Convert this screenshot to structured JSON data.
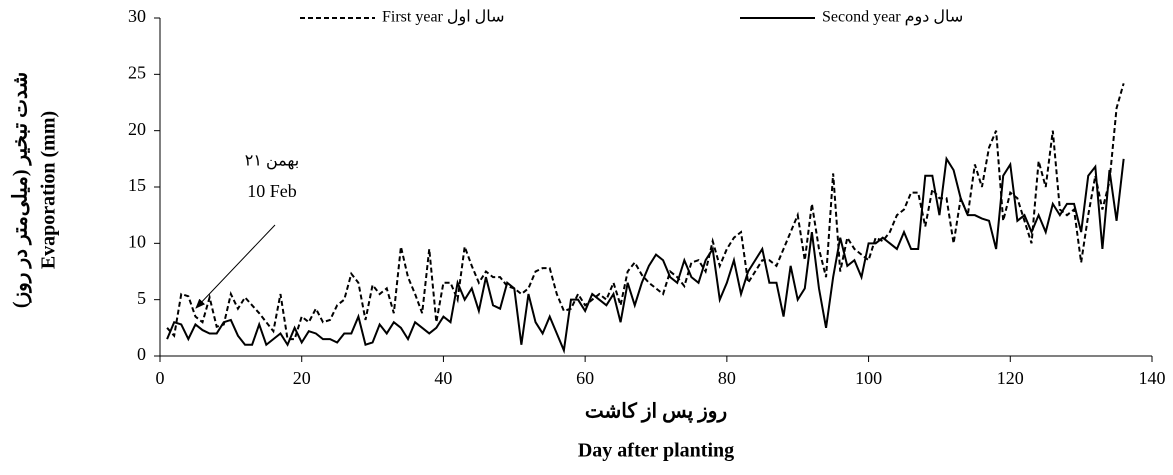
{
  "chart_data": {
    "type": "line",
    "y_label": [
      "شدت تبخیر (میلی‌متر در روز)",
      "Evaporation (mm)"
    ],
    "x_label": [
      "روز پس از کاشت",
      "Day after planting"
    ],
    "annotation": [
      "۲۱ بهمن",
      "10 Feb"
    ],
    "x": [
      1,
      2,
      3,
      4,
      5,
      6,
      7,
      8,
      9,
      10,
      11,
      12,
      13,
      14,
      15,
      16,
      17,
      18,
      19,
      20,
      21,
      22,
      23,
      24,
      25,
      26,
      27,
      28,
      29,
      30,
      31,
      32,
      33,
      34,
      35,
      36,
      37,
      38,
      39,
      40,
      41,
      42,
      43,
      44,
      45,
      46,
      47,
      48,
      49,
      50,
      51,
      52,
      53,
      54,
      55,
      56,
      57,
      58,
      59,
      60,
      61,
      62,
      63,
      64,
      65,
      66,
      67,
      68,
      69,
      70,
      71,
      72,
      73,
      74,
      75,
      76,
      77,
      78,
      79,
      80,
      81,
      82,
      83,
      84,
      85,
      86,
      87,
      88,
      89,
      90,
      91,
      92,
      93,
      94,
      95,
      96,
      97,
      98,
      99,
      100,
      101,
      102,
      103,
      104,
      105,
      106,
      107,
      108,
      109,
      110,
      111,
      112,
      113,
      114,
      115,
      116,
      117,
      118,
      119,
      120,
      121,
      122,
      123,
      124,
      125,
      126,
      127,
      128,
      129,
      130,
      131,
      132,
      133,
      134,
      135,
      136
    ],
    "series": [
      {
        "name": "First year سال اول",
        "color": "#000000",
        "dashed": true,
        "values": [
          2.5,
          1.8,
          5.5,
          5.3,
          3.5,
          3.0,
          5.2,
          2.6,
          2.8,
          5.5,
          4.2,
          5.2,
          4.5,
          3.8,
          3.0,
          2.2,
          5.5,
          1.5,
          1.5,
          3.5,
          3.0,
          4.2,
          3.0,
          3.2,
          4.5,
          5.0,
          7.3,
          6.5,
          3.2,
          6.3,
          5.5,
          6.0,
          3.8,
          9.7,
          7.0,
          5.5,
          3.8,
          9.5,
          3.0,
          6.5,
          6.5,
          5.0,
          9.7,
          8.0,
          6.5,
          7.5,
          7.0,
          7.0,
          6.2,
          6.0,
          5.5,
          6.0,
          7.5,
          7.8,
          7.8,
          5.5,
          4.0,
          4.2,
          5.5,
          4.5,
          5.0,
          5.5,
          5.0,
          6.5,
          4.5,
          7.5,
          8.3,
          7.2,
          6.5,
          6.0,
          5.5,
          7.5,
          7.0,
          6.2,
          8.3,
          8.5,
          7.5,
          10.2,
          8.0,
          9.5,
          10.5,
          11.0,
          6.5,
          7.5,
          8.5,
          8.5,
          8.0,
          9.5,
          11.0,
          12.5,
          8.5,
          13.5,
          9.5,
          7.0,
          16.2,
          7.5,
          10.5,
          9.5,
          9.0,
          8.5,
          10.5,
          10.2,
          11.0,
          12.5,
          13.0,
          14.5,
          14.5,
          11.5,
          14.8,
          14.0,
          14.0,
          10.0,
          14.0,
          12.5,
          17.0,
          15.0,
          18.5,
          20.0,
          12.0,
          14.5,
          14.0,
          12.0,
          10.0,
          17.3,
          15.0,
          20.0,
          13.0,
          12.5,
          13.0,
          8.3,
          12.5,
          16.0,
          13.0,
          15.5,
          22.0,
          24.2
        ]
      },
      {
        "name": "Second year سال دوم",
        "color": "#000000",
        "dashed": false,
        "values": [
          1.5,
          3.0,
          2.8,
          1.5,
          2.8,
          2.3,
          2.0,
          2.0,
          3.0,
          3.2,
          1.8,
          1.0,
          1.0,
          2.8,
          1.0,
          1.5,
          2.0,
          1.0,
          2.5,
          1.2,
          2.2,
          2.0,
          1.5,
          1.5,
          1.2,
          2.0,
          2.0,
          3.5,
          1.0,
          1.2,
          2.8,
          2.0,
          3.0,
          2.5,
          1.5,
          3.0,
          2.5,
          2.0,
          2.5,
          3.5,
          3.0,
          6.5,
          5.0,
          6.0,
          4.0,
          7.0,
          4.5,
          4.2,
          6.5,
          6.0,
          1.0,
          5.5,
          3.0,
          2.0,
          3.5,
          2.0,
          0.5,
          5.0,
          5.0,
          4.0,
          5.5,
          5.0,
          4.5,
          5.5,
          3.0,
          6.5,
          4.5,
          6.5,
          8.0,
          9.0,
          8.5,
          7.0,
          6.5,
          8.5,
          7.0,
          6.5,
          8.5,
          9.5,
          5.0,
          6.5,
          8.5,
          5.5,
          7.5,
          8.5,
          9.5,
          6.5,
          6.5,
          3.5,
          8.0,
          5.0,
          6.0,
          11.0,
          6.0,
          2.5,
          7.0,
          10.5,
          8.0,
          8.5,
          7.0,
          10.0,
          10.0,
          10.5,
          10.0,
          9.5,
          11.0,
          9.5,
          9.5,
          16.0,
          16.0,
          12.5,
          17.5,
          16.5,
          14.0,
          12.5,
          12.5,
          12.2,
          12.0,
          9.5,
          16.0,
          17.0,
          12.0,
          12.5,
          11.0,
          12.5,
          11.0,
          13.5,
          12.5,
          13.5,
          13.5,
          11.0,
          16.0,
          16.8,
          9.5,
          16.5,
          12.0,
          17.5
        ]
      }
    ],
    "xlim": [
      0,
      140
    ],
    "xticks": [
      0,
      20,
      40,
      60,
      80,
      100,
      120,
      140
    ],
    "ylim": [
      0,
      30
    ],
    "yticks": [
      0,
      5,
      10,
      15,
      20,
      25,
      30
    ],
    "grid": false
  }
}
